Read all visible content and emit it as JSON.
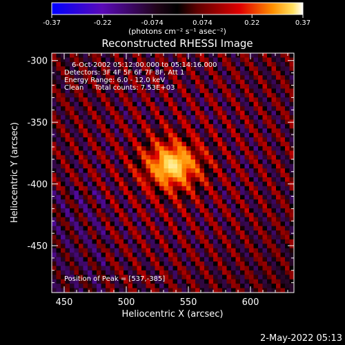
{
  "colorbar": {
    "tick_labels": [
      "-0.37",
      "-0.22",
      "-0.074",
      "0.074",
      "0.22",
      "0.37"
    ],
    "unit_label": "(photons cm⁻² s⁻¹ asec⁻²)"
  },
  "plot": {
    "title": "Reconstructed RHESSI Image",
    "xlabel": "Heliocentric X (arcsec)",
    "ylabel": "Heliocentric Y (arcsec)",
    "x_ticks": [
      "450",
      "500",
      "550",
      "600"
    ],
    "y_ticks": [
      "-300",
      "-350",
      "-400",
      "-450"
    ],
    "info_lines": [
      "6-Oct-2002 05:12:00.000 to 05:14:16.000",
      "Detectors: 3F 4F 5F 6F 7F 8F, Att 1",
      "Energy Range: 6.0 - 12.0 keV",
      "Clean     Total counts: 7.53E+03"
    ],
    "peak_text": "Position of Peak = [537,-385]"
  },
  "footer_timestamp": "2-May-2022 05:13",
  "chart_data": {
    "type": "heatmap",
    "title": "Reconstructed RHESSI Image",
    "xlabel": "Heliocentric X (arcsec)",
    "ylabel": "Heliocentric Y (arcsec)",
    "xlim": [
      440,
      635
    ],
    "ylim": [
      -488,
      -294
    ],
    "x_ticks": [
      450,
      500,
      550,
      600
    ],
    "y_ticks": [
      -300,
      -350,
      -400,
      -450
    ],
    "color_range": [
      -0.37,
      0.37
    ],
    "colorbar_ticks": [
      -0.37,
      -0.22,
      -0.074,
      0.074,
      0.22,
      0.37
    ],
    "colorbar_unit": "photons cm^-2 s^-1 asec^-2",
    "peak_position": [
      537,
      -385
    ],
    "fringe_angle_deg": 35,
    "fringe_period_arcsec": 14,
    "source_width_arcsec": 17,
    "source_height_arcsec": 15,
    "colors": {
      "background": "#000000",
      "text": "#ffffff",
      "colormap": [
        "#0000ff",
        "#6a0ac0",
        "#3b0a4f",
        "#000000",
        "#7a0000",
        "#e00000",
        "#ff7a00",
        "#ffd23a",
        "#ffffff"
      ]
    }
  }
}
